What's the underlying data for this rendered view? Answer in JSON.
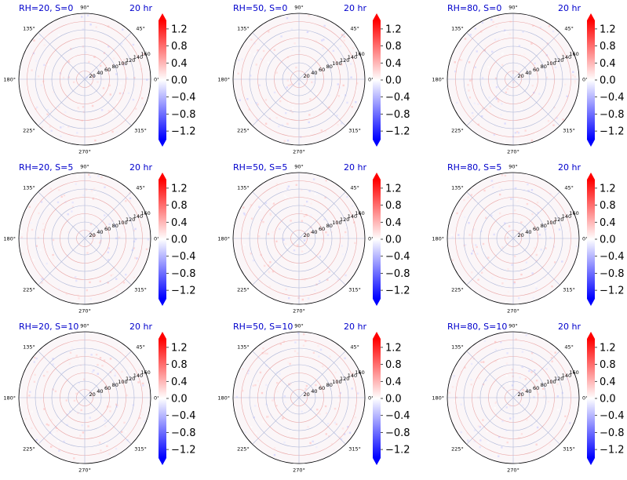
{
  "figure": {
    "colorbar_ticks": [
      "1.2",
      "0.8",
      "0.4",
      "0.0",
      "−0.4",
      "−0.8",
      "−1.2"
    ],
    "colormap_colors": {
      "high": "#ff0000",
      "mid": "#ffffff",
      "low": "#0000ff"
    },
    "title_color": "#0000cc"
  },
  "chart_data": [
    {
      "type": "heatmap",
      "projection": "polar",
      "title": "RH=20, S=0",
      "time_label": "20 hr",
      "angle_labels": [
        "90°",
        "45°",
        "0°",
        "315°",
        "270°",
        "225°",
        "180°",
        "135°"
      ],
      "radial_labels": [
        "20",
        "40",
        "60",
        "80",
        "100",
        "120",
        "140",
        "160"
      ],
      "rlim": [
        0,
        160
      ],
      "colorbar": {
        "vmin": -1.4,
        "vmax": 1.4,
        "extend": "both",
        "ticks": [
          -1.2,
          -0.8,
          -0.4,
          0.0,
          0.4,
          0.8,
          1.2
        ]
      },
      "grid": true
    },
    {
      "type": "heatmap",
      "projection": "polar",
      "title": "RH=50, S=0",
      "time_label": "20 hr",
      "angle_labels": [
        "90°",
        "45°",
        "0°",
        "315°",
        "270°",
        "225°",
        "180°",
        "135°"
      ],
      "radial_labels": [
        "20",
        "40",
        "60",
        "80",
        "100",
        "120",
        "140",
        "160"
      ],
      "rlim": [
        0,
        160
      ],
      "colorbar": {
        "vmin": -1.4,
        "vmax": 1.4,
        "extend": "both",
        "ticks": [
          -1.2,
          -0.8,
          -0.4,
          0.0,
          0.4,
          0.8,
          1.2
        ]
      },
      "grid": true
    },
    {
      "type": "heatmap",
      "projection": "polar",
      "title": "RH=80, S=0",
      "time_label": "20 hr",
      "angle_labels": [
        "90°",
        "45°",
        "0°",
        "315°",
        "270°",
        "225°",
        "180°",
        "135°"
      ],
      "radial_labels": [
        "20",
        "40",
        "60",
        "80",
        "100",
        "120",
        "140",
        "160"
      ],
      "rlim": [
        0,
        160
      ],
      "colorbar": {
        "vmin": -1.4,
        "vmax": 1.4,
        "extend": "both",
        "ticks": [
          -1.2,
          -0.8,
          -0.4,
          0.0,
          0.4,
          0.8,
          1.2
        ]
      },
      "grid": true
    },
    {
      "type": "heatmap",
      "projection": "polar",
      "title": "RH=20, S=5",
      "time_label": "20 hr",
      "angle_labels": [
        "90°",
        "45°",
        "0°",
        "315°",
        "270°",
        "225°",
        "180°",
        "135°"
      ],
      "radial_labels": [
        "20",
        "40",
        "60",
        "80",
        "100",
        "120",
        "140",
        "160"
      ],
      "rlim": [
        0,
        160
      ],
      "colorbar": {
        "vmin": -1.4,
        "vmax": 1.4,
        "extend": "both",
        "ticks": [
          -1.2,
          -0.8,
          -0.4,
          0.0,
          0.4,
          0.8,
          1.2
        ]
      },
      "grid": true
    },
    {
      "type": "heatmap",
      "projection": "polar",
      "title": "RH=50, S=5",
      "time_label": "20 hr",
      "angle_labels": [
        "90°",
        "45°",
        "0°",
        "315°",
        "270°",
        "225°",
        "180°",
        "135°"
      ],
      "radial_labels": [
        "20",
        "40",
        "60",
        "80",
        "100",
        "120",
        "140",
        "160"
      ],
      "rlim": [
        0,
        160
      ],
      "colorbar": {
        "vmin": -1.4,
        "vmax": 1.4,
        "extend": "both",
        "ticks": [
          -1.2,
          -0.8,
          -0.4,
          0.0,
          0.4,
          0.8,
          1.2
        ]
      },
      "grid": true
    },
    {
      "type": "heatmap",
      "projection": "polar",
      "title": "RH=80, S=5",
      "time_label": "20 hr",
      "angle_labels": [
        "90°",
        "45°",
        "0°",
        "315°",
        "270°",
        "225°",
        "180°",
        "135°"
      ],
      "radial_labels": [
        "20",
        "40",
        "60",
        "80",
        "100",
        "120",
        "140",
        "160"
      ],
      "rlim": [
        0,
        160
      ],
      "colorbar": {
        "vmin": -1.4,
        "vmax": 1.4,
        "extend": "both",
        "ticks": [
          -1.2,
          -0.8,
          -0.4,
          0.0,
          0.4,
          0.8,
          1.2
        ]
      },
      "grid": true
    },
    {
      "type": "heatmap",
      "projection": "polar",
      "title": "RH=20, S=10",
      "time_label": "20 hr",
      "angle_labels": [
        "90°",
        "45°",
        "0°",
        "315°",
        "270°",
        "225°",
        "180°",
        "135°"
      ],
      "radial_labels": [
        "20",
        "40",
        "60",
        "80",
        "100",
        "120",
        "140",
        "160"
      ],
      "rlim": [
        0,
        160
      ],
      "colorbar": {
        "vmin": -1.4,
        "vmax": 1.4,
        "extend": "both",
        "ticks": [
          -1.2,
          -0.8,
          -0.4,
          0.0,
          0.4,
          0.8,
          1.2
        ]
      },
      "grid": true
    },
    {
      "type": "heatmap",
      "projection": "polar",
      "title": "RH=50, S=10",
      "time_label": "20 hr",
      "angle_labels": [
        "90°",
        "45°",
        "0°",
        "315°",
        "270°",
        "225°",
        "180°",
        "135°"
      ],
      "radial_labels": [
        "20",
        "40",
        "60",
        "80",
        "100",
        "120",
        "140",
        "160"
      ],
      "rlim": [
        0,
        160
      ],
      "colorbar": {
        "vmin": -1.4,
        "vmax": 1.4,
        "extend": "both",
        "ticks": [
          -1.2,
          -0.8,
          -0.4,
          0.0,
          0.4,
          0.8,
          1.2
        ]
      },
      "grid": true
    },
    {
      "type": "heatmap",
      "projection": "polar",
      "title": "RH=80, S=10",
      "time_label": "20 hr",
      "angle_labels": [
        "90°",
        "45°",
        "0°",
        "315°",
        "270°",
        "225°",
        "180°",
        "135°"
      ],
      "radial_labels": [
        "20",
        "40",
        "60",
        "80",
        "100",
        "120",
        "140",
        "160"
      ],
      "rlim": [
        0,
        160
      ],
      "colorbar": {
        "vmin": -1.4,
        "vmax": 1.4,
        "extend": "both",
        "ticks": [
          -1.2,
          -0.8,
          -0.4,
          0.0,
          0.4,
          0.8,
          1.2
        ]
      },
      "grid": true
    }
  ]
}
